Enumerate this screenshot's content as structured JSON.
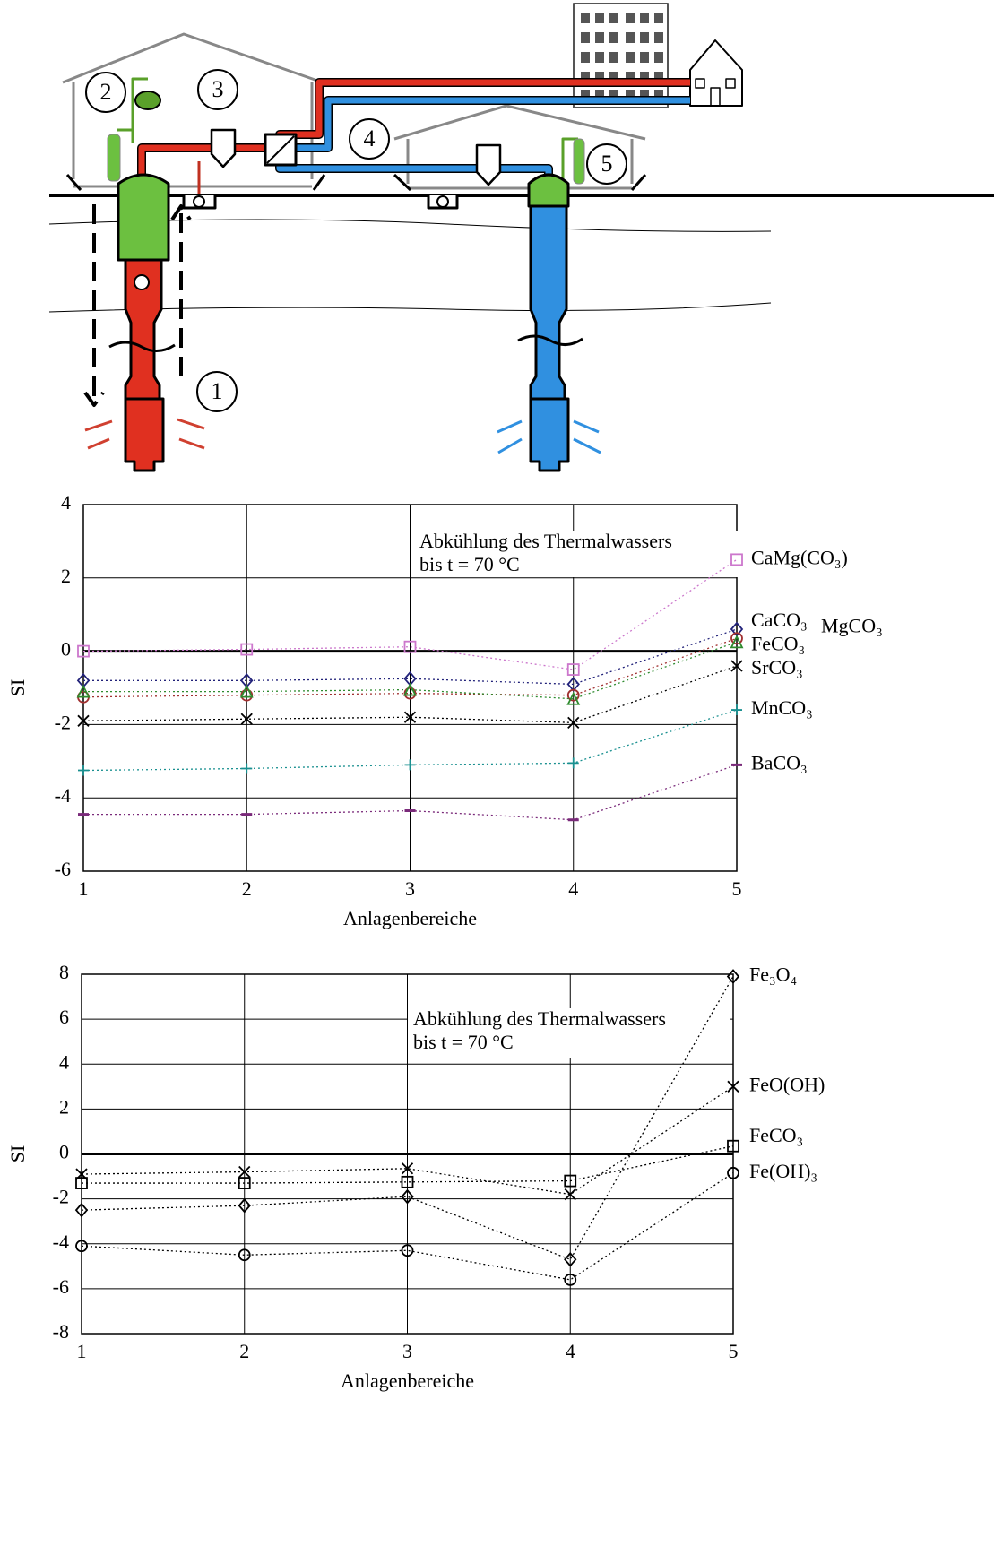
{
  "diagram": {
    "labels": [
      "1",
      "2",
      "3",
      "4",
      "5"
    ]
  },
  "chart_data": [
    {
      "type": "line",
      "x": [
        1,
        2,
        3,
        4,
        5
      ],
      "xlim": [
        1,
        5
      ],
      "xticks": [
        1,
        2,
        3,
        4,
        5
      ],
      "ylim": [
        -6,
        4
      ],
      "yticks": [
        -6,
        -4,
        -2,
        0,
        2,
        4
      ],
      "grid": true,
      "zero_line": true,
      "xlabel": "Anlagenbereiche",
      "ylabel": "SI",
      "annotation": [
        "Abkühlung des Thermalwassers",
        "bis t = 70 °C"
      ],
      "series": [
        {
          "name": "CaMg(CO₃)",
          "color": "#cc77cc",
          "marker": "square",
          "values": [
            0,
            0.05,
            0.12,
            -0.5,
            2.5
          ]
        },
        {
          "name": "CaCO₃",
          "color": "#22227a",
          "marker": "diamond",
          "values": [
            -0.8,
            -0.8,
            -0.75,
            -0.9,
            0.6
          ]
        },
        {
          "name": "MgCO₃",
          "color": "#a03030",
          "marker": "circle",
          "values": [
            -1.25,
            -1.2,
            -1.15,
            -1.2,
            0.35
          ]
        },
        {
          "name": "FeCO₃",
          "color": "#2e8b2e",
          "marker": "triangle",
          "values": [
            -1.1,
            -1.1,
            -1.05,
            -1.3,
            0.25
          ]
        },
        {
          "name": "SrCO₃",
          "color": "#000000",
          "marker": "x",
          "values": [
            -1.9,
            -1.85,
            -1.8,
            -1.95,
            -0.4
          ]
        },
        {
          "name": "MnCO₃",
          "color": "#1a9090",
          "marker": "plus",
          "values": [
            -3.25,
            -3.2,
            -3.1,
            -3.05,
            -1.6
          ]
        },
        {
          "name": "BaCO₃",
          "color": "#7a2a7a",
          "marker": "dash",
          "values": [
            -4.45,
            -4.45,
            -4.35,
            -4.6,
            -3.1
          ]
        }
      ]
    },
    {
      "type": "line",
      "x": [
        1,
        2,
        3,
        4,
        5
      ],
      "xlim": [
        1,
        5
      ],
      "xticks": [
        1,
        2,
        3,
        4,
        5
      ],
      "ylim": [
        -8,
        8
      ],
      "yticks": [
        -8,
        -6,
        -4,
        -2,
        0,
        2,
        4,
        6,
        8
      ],
      "grid": true,
      "zero_line": true,
      "xlabel": "Anlagenbereiche",
      "ylabel": "SI",
      "annotation": [
        "Abkühlung des Thermalwassers",
        "bis t = 70 °C"
      ],
      "series": [
        {
          "name": "Fe₃O₄",
          "color": "#000000",
          "marker": "diamond",
          "values": [
            -2.5,
            -2.3,
            -1.9,
            -4.7,
            7.9
          ]
        },
        {
          "name": "FeO(OH)",
          "color": "#000000",
          "marker": "x",
          "values": [
            -0.9,
            -0.8,
            -0.65,
            -1.8,
            3.0
          ]
        },
        {
          "name": "FeCO₃",
          "color": "#000000",
          "marker": "square",
          "values": [
            -1.3,
            -1.3,
            -1.25,
            -1.2,
            0.35
          ]
        },
        {
          "name": "Fe(OH)₃",
          "color": "#000000",
          "marker": "circle",
          "values": [
            -4.1,
            -4.5,
            -4.3,
            -5.6,
            -0.85
          ]
        }
      ]
    }
  ]
}
